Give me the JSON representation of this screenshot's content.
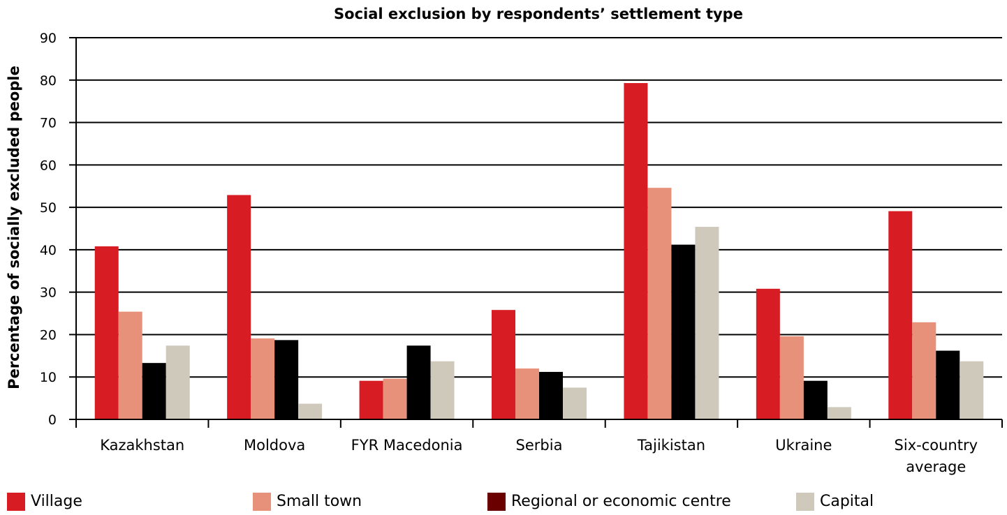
{
  "chart_data": {
    "type": "bar",
    "title": "Social exclusion by respondents’ settlement type",
    "xlabel": "",
    "ylabel": "Percentage of socially excluded people",
    "ylim": [
      0,
      90
    ],
    "yticks": [
      0,
      10,
      20,
      30,
      40,
      50,
      60,
      70,
      80,
      90
    ],
    "grid": true,
    "legend_position": "bottom",
    "categories": [
      [
        "Kazakhstan"
      ],
      [
        "Moldova"
      ],
      [
        "FYR Macedonia"
      ],
      [
        "Serbia"
      ],
      [
        "Tajikistan"
      ],
      [
        "Ukraine"
      ],
      [
        "Six-country",
        "average"
      ]
    ],
    "series": [
      {
        "name": "Village",
        "color": "#d71c23",
        "values": [
          40.8,
          52.9,
          9.1,
          25.8,
          79.3,
          30.8,
          49.1
        ]
      },
      {
        "name": "Small town",
        "color": "#e8917a",
        "values": [
          25.4,
          19.1,
          9.6,
          12.0,
          54.6,
          19.6,
          22.9
        ]
      },
      {
        "name": "Regional or economic centre",
        "color": "#000000",
        "legend_color": "#6b0000",
        "values": [
          13.3,
          18.7,
          17.4,
          11.2,
          41.2,
          9.1,
          16.2
        ]
      },
      {
        "name": "Capital",
        "color": "#cfc9bc",
        "values": [
          17.4,
          3.7,
          13.7,
          7.5,
          45.4,
          2.9,
          13.7
        ]
      }
    ]
  }
}
